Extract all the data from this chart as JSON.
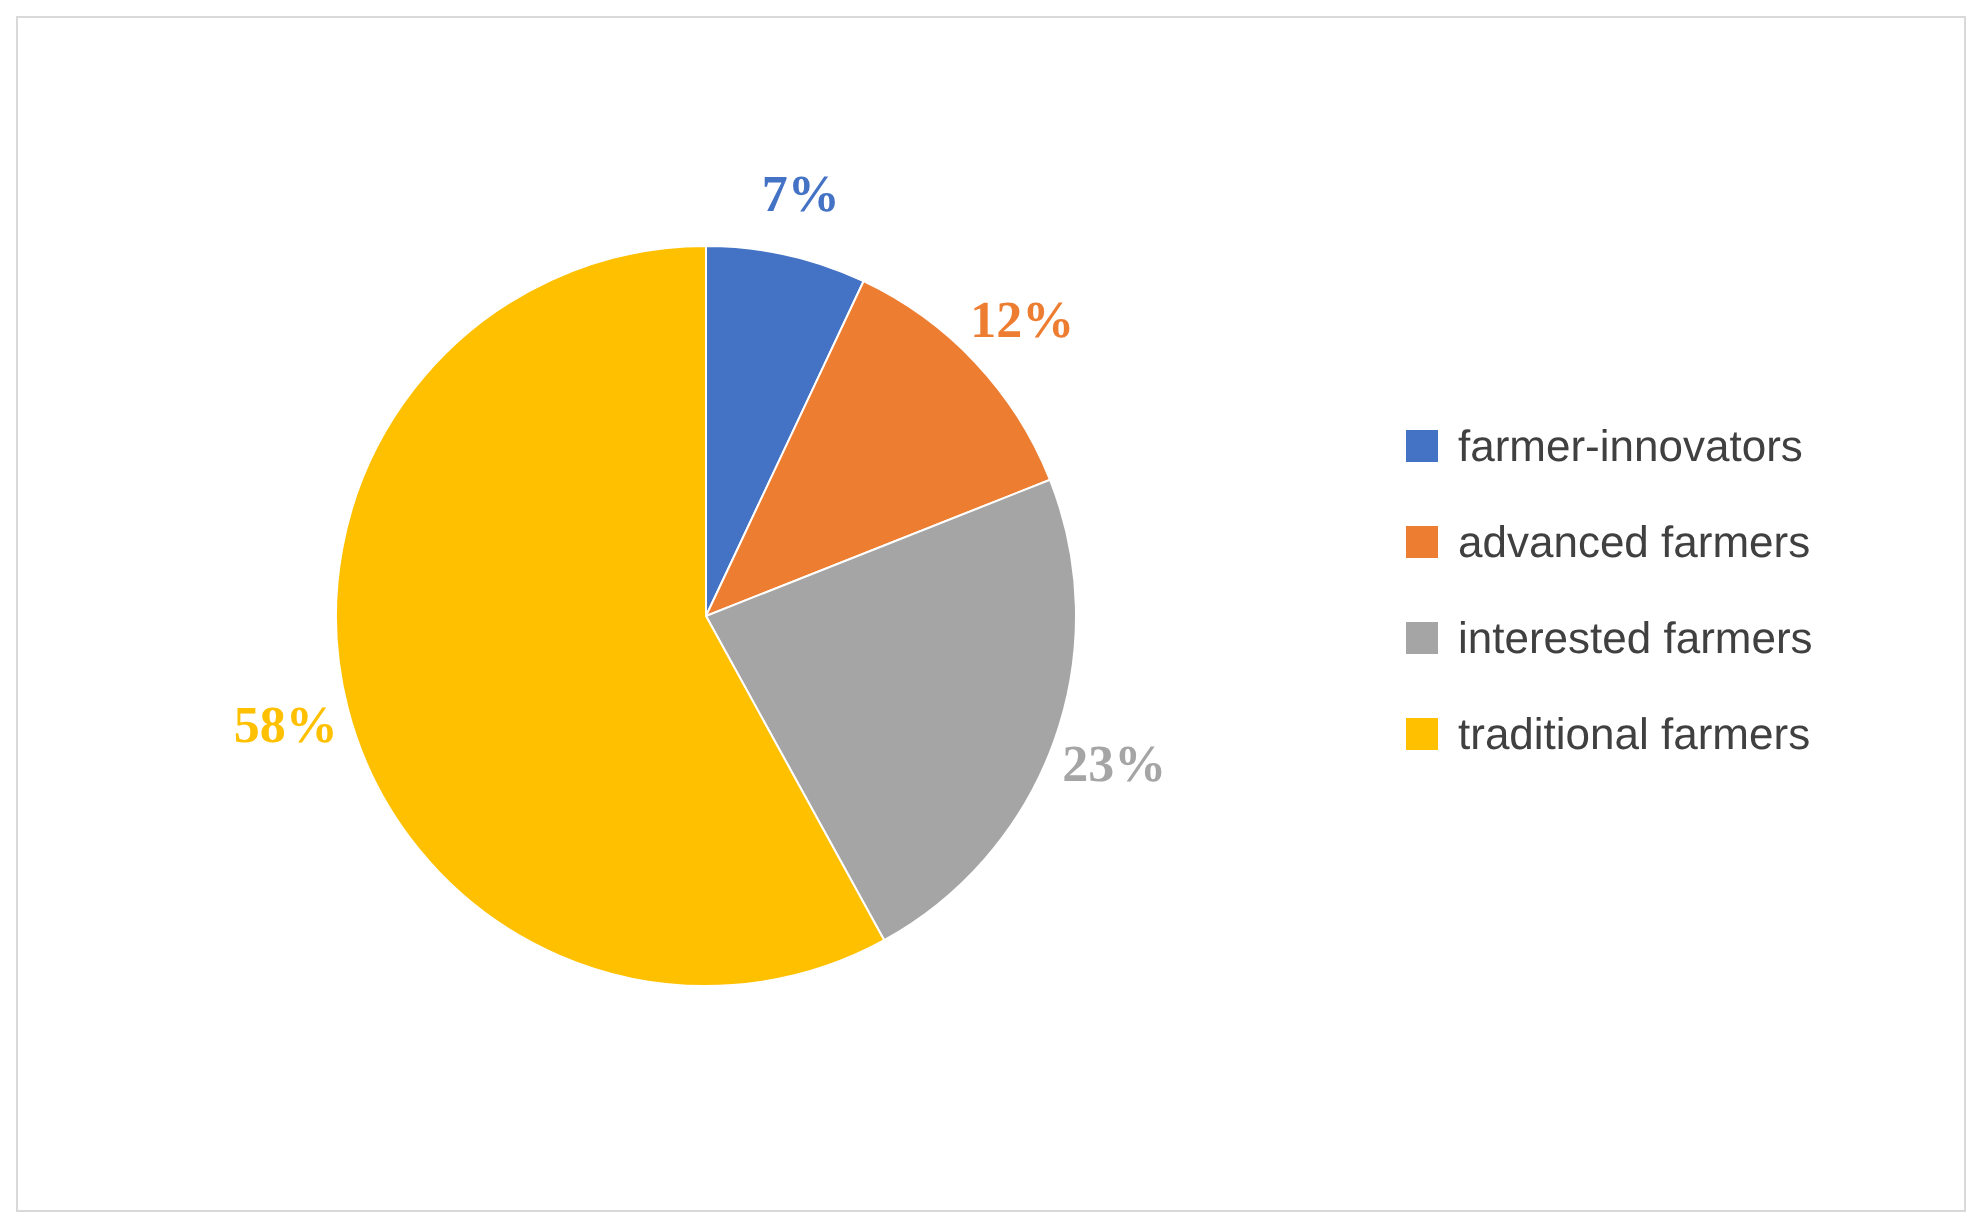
{
  "chart_data": {
    "type": "pie",
    "categories": [
      "farmer-innovators",
      "advanced farmers",
      "interested farmers",
      "traditional farmers"
    ],
    "values": [
      7,
      12,
      23,
      58
    ],
    "colors": [
      "#4472c4",
      "#ed7d31",
      "#a5a5a5",
      "#ffc000"
    ],
    "value_labels": [
      "7%",
      "12%",
      "23%",
      "58%"
    ],
    "legend": "right"
  }
}
